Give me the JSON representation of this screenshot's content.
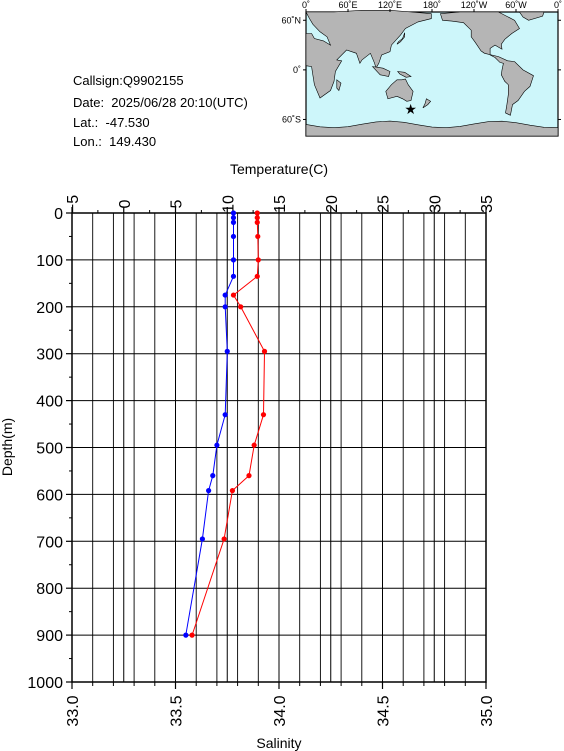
{
  "info": {
    "callsign": "Callsign:Q9902155",
    "date": "Date:  2025/06/28 20:10(UTC)",
    "lat": "Lat.:  -47.530",
    "lon": "Lon.:  149.430"
  },
  "map": {
    "lon_labels": [
      "0˚",
      "60˚E",
      "120˚E",
      "180˚",
      "120˚W",
      "60˚W",
      "0˚"
    ],
    "lat_labels": [
      "60˚N",
      "0˚",
      "60˚S"
    ],
    "station": {
      "lon": 149.43,
      "lat": -47.53
    },
    "colors": {
      "ocean": "#cdf6fa",
      "land": "#b5b5b5",
      "marker": "#ff0000"
    }
  },
  "chart_data": {
    "type": "line",
    "title": "",
    "ylabel": "Depth(m)",
    "top_xlabel": "Temperature(C)",
    "bottom_xlabel": "Salinity",
    "ylim": [
      0,
      1000
    ],
    "temperature_lim": [
      -5,
      35
    ],
    "salinity_lim": [
      33.0,
      35.0
    ],
    "y_ticks": [
      "0",
      "100",
      "200",
      "300",
      "400",
      "500",
      "600",
      "700",
      "800",
      "900",
      "1000"
    ],
    "temperature_ticks": [
      "−5",
      "0",
      "5",
      "10",
      "15",
      "20",
      "25",
      "30",
      "35"
    ],
    "salinity_ticks": [
      "33.0",
      "33.5",
      "34.0",
      "34.5",
      "35.0"
    ],
    "grid": true,
    "series": [
      {
        "axis": "temperature",
        "color": "#ff0000",
        "points": [
          {
            "depth": 0,
            "value": 12.9
          },
          {
            "depth": 10,
            "value": 12.9
          },
          {
            "depth": 20,
            "value": 12.9
          },
          {
            "depth": 50,
            "value": 12.95
          },
          {
            "depth": 100,
            "value": 13.0
          },
          {
            "depth": 135,
            "value": 12.9
          },
          {
            "depth": 175,
            "value": 10.6
          },
          {
            "depth": 200,
            "value": 11.3
          },
          {
            "depth": 295,
            "value": 13.6
          },
          {
            "depth": 430,
            "value": 13.5
          },
          {
            "depth": 495,
            "value": 12.6
          },
          {
            "depth": 560,
            "value": 12.1
          },
          {
            "depth": 592,
            "value": 10.5
          },
          {
            "depth": 695,
            "value": 9.7
          },
          {
            "depth": 900,
            "value": 6.6
          }
        ]
      },
      {
        "axis": "salinity",
        "color": "#0000ff",
        "points": [
          {
            "depth": 0,
            "value": 33.78
          },
          {
            "depth": 10,
            "value": 33.78
          },
          {
            "depth": 20,
            "value": 33.78
          },
          {
            "depth": 50,
            "value": 33.78
          },
          {
            "depth": 100,
            "value": 33.78
          },
          {
            "depth": 135,
            "value": 33.78
          },
          {
            "depth": 175,
            "value": 33.74
          },
          {
            "depth": 200,
            "value": 33.74
          },
          {
            "depth": 295,
            "value": 33.75
          },
          {
            "depth": 430,
            "value": 33.74
          },
          {
            "depth": 495,
            "value": 33.7
          },
          {
            "depth": 560,
            "value": 33.68
          },
          {
            "depth": 592,
            "value": 33.66
          },
          {
            "depth": 695,
            "value": 33.63
          },
          {
            "depth": 900,
            "value": 33.55
          }
        ]
      }
    ]
  }
}
